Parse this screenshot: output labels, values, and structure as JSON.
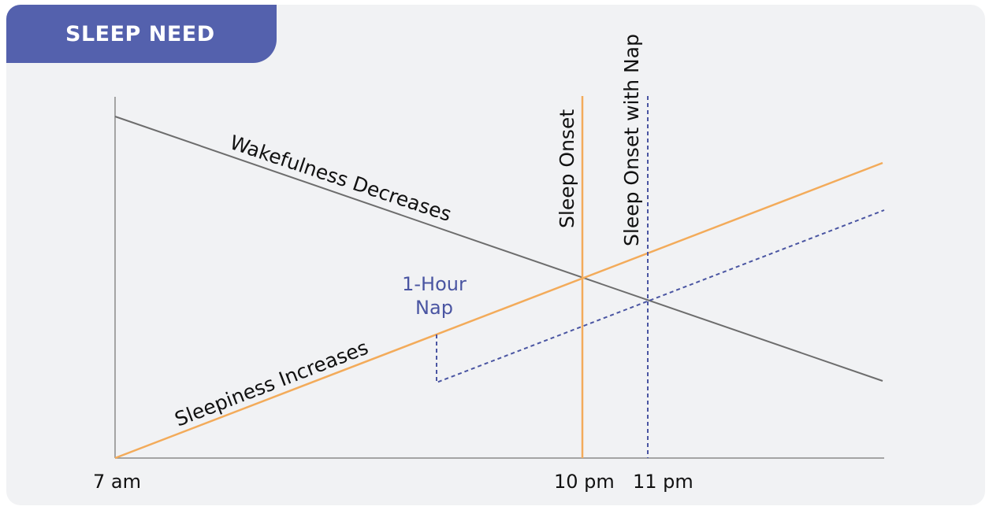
{
  "header": {
    "title": "SLEEP NEED"
  },
  "colors": {
    "header_bg": "#5461ad",
    "card_bg": "#f1f2f4",
    "axis": "#8a8a8a",
    "wakefulness_line": "#6d6d6d",
    "sleepiness_line": "#f3ab5a",
    "nap_line": "#4a55a2",
    "label_text": "#111111",
    "nap_label_text": "#4a55a2"
  },
  "x_axis": {
    "labels": [
      "7 am",
      "10 pm",
      "11 pm"
    ]
  },
  "lines": {
    "wakefulness": "Wakefulness Decreases",
    "sleepiness": "Sleepiness Increases",
    "sleep_onset": "Sleep Onset",
    "sleep_onset_with_nap": "Sleep Onset with Nap"
  },
  "nap": {
    "line1": "1-Hour",
    "line2": "Nap"
  }
}
